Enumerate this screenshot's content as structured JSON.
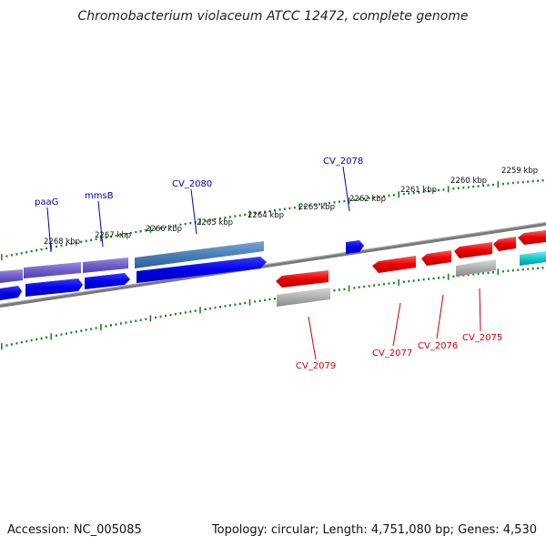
{
  "title": "Chromobacterium violaceum ATCC 12472, complete genome",
  "footer": {
    "accession": "Accession: NC_005085",
    "summary": "Topology: circular; Length: 4,751,080 bp; Genes: 4,530"
  },
  "colors": {
    "forward_label": "#0000aa",
    "reverse_label": "#cc0000",
    "tick": "#208020",
    "backbone": "#888888"
  },
  "kbp_ticks": [
    {
      "label": "2268 kbp"
    },
    {
      "label": "2267 kbp"
    },
    {
      "label": "2266 kbp"
    },
    {
      "label": "2265 kbp"
    },
    {
      "label": "2264 kbp"
    },
    {
      "label": "2263 kbp"
    },
    {
      "label": "2262 kbp"
    },
    {
      "label": "2261 kbp"
    },
    {
      "label": "2260 kbp"
    },
    {
      "label": "2259 kbp"
    }
  ],
  "gene_labels": [
    {
      "label": "paaG",
      "strand": "forward"
    },
    {
      "label": "mmsB",
      "strand": "forward"
    },
    {
      "label": "CV_2080",
      "strand": "forward"
    },
    {
      "label": "CV_2078",
      "strand": "forward"
    },
    {
      "label": "CV_2079",
      "strand": "reverse"
    },
    {
      "label": "CV_2077",
      "strand": "reverse"
    },
    {
      "label": "CV_2076",
      "strand": "reverse"
    },
    {
      "label": "CV_2075",
      "strand": "reverse"
    }
  ]
}
